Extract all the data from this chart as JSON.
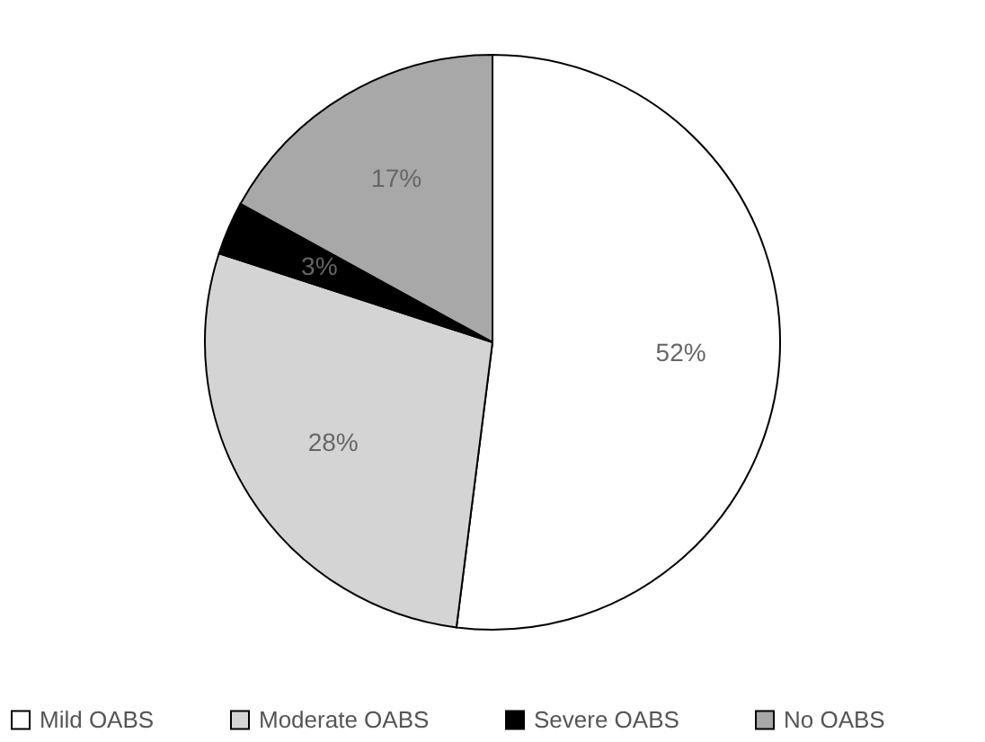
{
  "chart_data": {
    "type": "pie",
    "categories": [
      "Mild OABS",
      "Moderate OABS",
      "Severe OABS",
      "No OABS"
    ],
    "values": [
      52,
      28,
      3,
      17
    ],
    "colors": [
      "#ffffff",
      "#d4d4d4",
      "#000000",
      "#a8a8a8"
    ],
    "value_labels": [
      "52%",
      "28%",
      "3%",
      "17%"
    ],
    "legend": "bottom"
  }
}
